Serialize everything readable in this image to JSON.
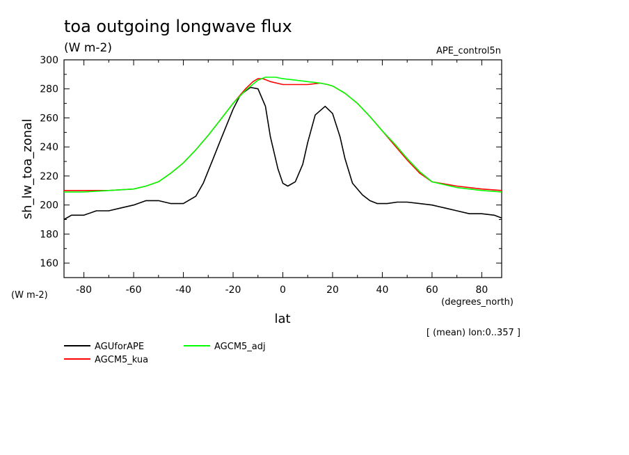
{
  "chart_data": {
    "type": "line",
    "title": "toa outgoing longwave flux",
    "units": "(W m-2)",
    "experiment": "APE_control5n",
    "xlabel": "lat",
    "x_units": "(degrees_north)",
    "ylabel": "sh_lw_toa_zonal",
    "y_units": "(W m-2)",
    "averaging_note": "[ (mean) lon:0..357 ]",
    "xlim": [
      -88,
      88
    ],
    "ylim": [
      150,
      300
    ],
    "x_ticks": [
      -80,
      -60,
      -40,
      -20,
      0,
      20,
      40,
      60,
      80
    ],
    "y_ticks": [
      160,
      180,
      200,
      220,
      240,
      260,
      280,
      300
    ],
    "series": [
      {
        "name": "AGUforAPE",
        "color": "#000000",
        "x": [
          -88,
          -85,
          -80,
          -75,
          -70,
          -65,
          -60,
          -55,
          -50,
          -45,
          -40,
          -35,
          -32,
          -28,
          -25,
          -20,
          -17,
          -13,
          -10,
          -7,
          -5,
          -2,
          0,
          2,
          5,
          8,
          10,
          13,
          17,
          20,
          23,
          25,
          28,
          32,
          35,
          38,
          42,
          46,
          50,
          55,
          60,
          65,
          70,
          75,
          80,
          85,
          88
        ],
        "y": [
          190,
          193,
          193,
          196,
          196,
          198,
          200,
          203,
          203,
          201,
          201,
          206,
          215,
          232,
          245,
          266,
          276,
          281,
          280,
          268,
          247,
          225,
          215,
          213,
          216,
          228,
          243,
          262,
          268,
          263,
          247,
          232,
          215,
          207,
          203,
          201,
          201,
          202,
          202,
          201,
          200,
          198,
          196,
          194,
          194,
          193,
          191
        ]
      },
      {
        "name": "AGCM5_kua",
        "color": "#ff0000",
        "x": [
          -88,
          -80,
          -70,
          -60,
          -55,
          -50,
          -45,
          -40,
          -35,
          -30,
          -25,
          -20,
          -15,
          -12,
          -10,
          -8,
          -5,
          0,
          5,
          10,
          15,
          18,
          20,
          22,
          25,
          30,
          35,
          40,
          45,
          50,
          55,
          60,
          70,
          80,
          88
        ],
        "y": [
          210,
          210,
          210,
          211,
          213,
          216,
          222,
          229,
          238,
          248,
          259,
          270,
          280,
          285,
          287,
          287,
          285,
          283,
          283,
          283,
          284,
          283,
          282,
          280,
          277,
          270,
          261,
          251,
          241,
          231,
          222,
          216,
          213,
          211,
          210
        ]
      },
      {
        "name": "AGCM5_adj",
        "color": "#00ff00",
        "x": [
          -88,
          -80,
          -70,
          -60,
          -55,
          -50,
          -45,
          -40,
          -35,
          -30,
          -25,
          -20,
          -15,
          -10,
          -7,
          -3,
          0,
          5,
          10,
          15,
          18,
          20,
          22,
          25,
          30,
          35,
          40,
          45,
          50,
          55,
          60,
          70,
          80,
          88
        ],
        "y": [
          209,
          209,
          210,
          211,
          213,
          216,
          222,
          229,
          238,
          248,
          259,
          270,
          279,
          286,
          288,
          288,
          287,
          286,
          285,
          284,
          283,
          282,
          280,
          277,
          270,
          261,
          251,
          242,
          232,
          223,
          216,
          212,
          210,
          209
        ]
      }
    ]
  }
}
